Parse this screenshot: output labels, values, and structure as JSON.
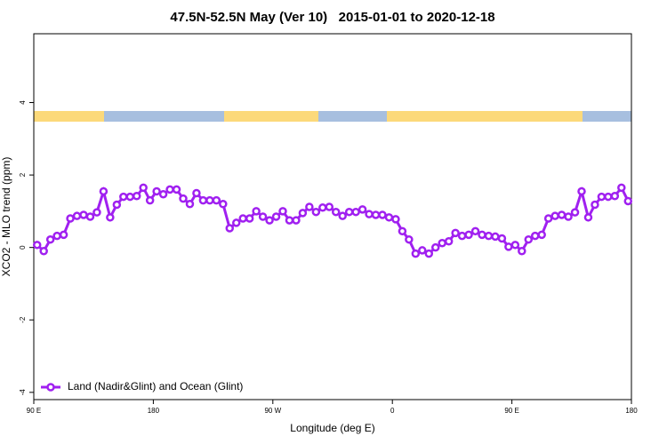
{
  "chart_data": {
    "type": "line",
    "title": "47.5N-52.5N May (Ver 10)   2015-01-01 to 2020-12-18",
    "xlabel": "Longitude (deg E)",
    "ylabel": "XCO2 - MLO trend (ppm)",
    "xlim": [
      90,
      540
    ],
    "xticks": [
      {
        "value": 90,
        "label": "90 E"
      },
      180,
      {
        "value": 270,
        "label": "90 W"
      },
      {
        "value": 360,
        "label": "0"
      },
      {
        "value": 450,
        "label": "90 E"
      },
      {
        "value": 540,
        "label": "180"
      }
    ],
    "ylim": [
      -4.2,
      5.9
    ],
    "yticks": [
      -4,
      -2,
      0,
      2,
      4
    ],
    "legend": "bottom-left",
    "x": [
      92.5,
      97.5,
      102.5,
      107.5,
      112.5,
      117.5,
      122.5,
      127.5,
      132.5,
      137.5,
      142.5,
      147.5,
      152.5,
      157.5,
      162.5,
      167.5,
      172.5,
      177.5,
      182.5,
      187.5,
      192.5,
      197.5,
      202.5,
      207.5,
      212.5,
      217.5,
      222.5,
      227.5,
      232.5,
      237.5,
      242.5,
      247.5,
      252.5,
      257.5,
      262.5,
      267.5,
      272.5,
      277.5,
      282.5,
      287.5,
      292.5,
      297.5,
      302.5,
      307.5,
      312.5,
      317.5,
      322.5,
      327.5,
      332.5,
      337.5,
      342.5,
      347.5,
      352.5,
      357.5,
      362.5,
      367.5,
      372.5,
      377.5,
      382.5,
      387.5,
      392.5,
      397.5,
      402.5,
      407.5,
      412.5,
      417.5,
      422.5,
      427.5,
      432.5,
      437.5,
      442.5,
      447.5,
      452.5,
      457.5,
      462.5,
      467.5,
      472.5,
      477.5,
      482.5,
      487.5,
      492.5,
      497.5,
      502.5,
      507.5,
      512.5,
      517.5,
      522.5,
      527.5,
      532.5,
      537.5
    ],
    "series": [
      {
        "name": "Land (Nadir&Glint) and Ocean (Glint)",
        "color": "#a020f0",
        "values": [
          0.07,
          -0.1,
          0.22,
          0.32,
          0.35,
          0.8,
          0.87,
          0.9,
          0.85,
          0.97,
          1.55,
          0.83,
          1.18,
          1.4,
          1.4,
          1.42,
          1.65,
          1.3,
          1.55,
          1.47,
          1.6,
          1.6,
          1.35,
          1.2,
          1.5,
          1.3,
          1.3,
          1.3,
          1.2,
          0.53,
          0.68,
          0.8,
          0.8,
          1.0,
          0.85,
          0.75,
          0.85,
          1.0,
          0.75,
          0.75,
          0.95,
          1.12,
          0.98,
          1.1,
          1.12,
          0.98,
          0.87,
          0.98,
          0.98,
          1.05,
          0.92,
          0.9,
          0.9,
          0.83,
          0.78,
          0.45,
          0.22,
          -0.17,
          -0.08,
          -0.17,
          0,
          0.12,
          0.17,
          0.4,
          0.32,
          0.35,
          0.45,
          0.35,
          0.32,
          0.3,
          0.25,
          0.02,
          0.07,
          -0.1,
          0.22,
          0.32,
          0.35,
          0.8,
          0.87,
          0.9,
          0.85,
          0.97,
          1.55,
          0.83,
          1.18,
          1.4,
          1.4,
          1.42,
          1.65,
          1.28
        ]
      }
    ]
  }
}
